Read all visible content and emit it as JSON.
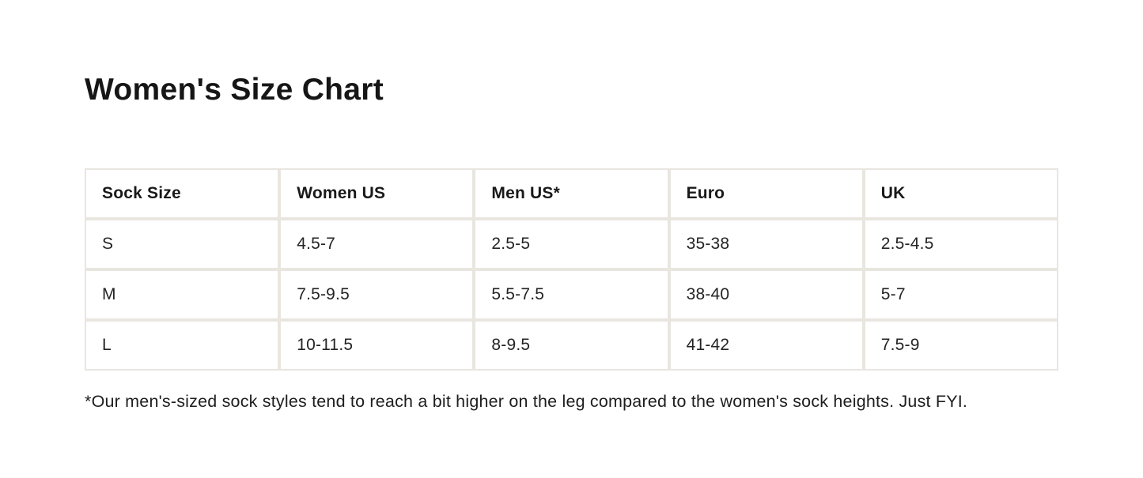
{
  "page": {
    "title": "Women's Size Chart",
    "footnote": "*Our men's-sized sock styles tend to reach a bit higher on the leg compared to the women's sock heights. Just FYI."
  },
  "size_chart": {
    "columns": [
      "Sock Size",
      "Women US",
      "Men US*",
      "Euro",
      "UK"
    ],
    "rows": [
      [
        "S",
        "4.5-7",
        "2.5-5",
        "35-38",
        "2.5-4.5"
      ],
      [
        "M",
        "7.5-9.5",
        "5.5-7.5",
        "38-40",
        "5-7"
      ],
      [
        "L",
        "10-11.5",
        "8-9.5",
        "41-42",
        "7.5-9"
      ]
    ]
  },
  "colors": {
    "background": "#ffffff",
    "cell_background": "#ffffff",
    "grid_border": "#e9e6e0",
    "text": "#1e1e1e"
  }
}
